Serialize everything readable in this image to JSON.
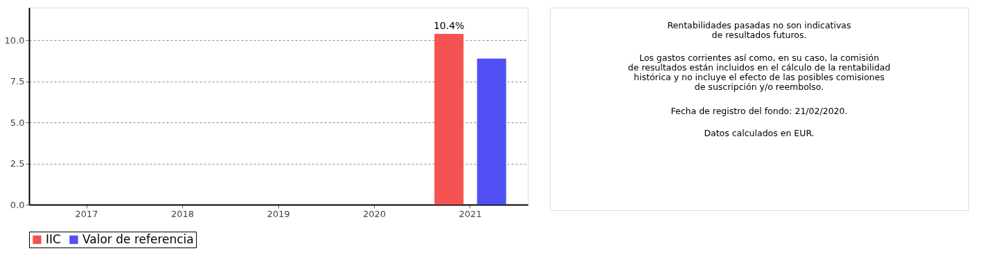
{
  "chart_data": [
    {
      "type": "bar",
      "categories": [
        "2017",
        "2018",
        "2019",
        "2020",
        "2021"
      ],
      "series": [
        {
          "name": "IIC",
          "color": "#f55252",
          "values": [
            null,
            null,
            null,
            null,
            10.4
          ],
          "value_labels": [
            null,
            null,
            null,
            null,
            "10.4%"
          ]
        },
        {
          "name": "Valor de referencia",
          "color": "#5050f5",
          "values": [
            null,
            null,
            null,
            null,
            8.9
          ]
        }
      ],
      "ylim": [
        0,
        12
      ],
      "yticks": [
        {
          "value": 0,
          "label": "0.0"
        },
        {
          "value": 2.5,
          "label": "2.5"
        },
        {
          "value": 5,
          "label": "5.0"
        },
        {
          "value": 7.5,
          "label": "7.5"
        },
        {
          "value": 10,
          "label": "10.0"
        }
      ],
      "grid": "y",
      "legend": "bottom"
    },
    {
      "type": "other",
      "annotations": [
        "Rentabilidades pasadas no son indicativas\nde resultados futuros.",
        "Los gastos corrientes así como, en su caso, la comisión\nde resultados están incluidos en el cálculo de la rentabilidad\nhistórica y no incluye el efecto de las posibles comisiones\nde suscripción y/o reembolso.",
        "Fecha de registro del fondo: 21/02/2020.",
        "Datos calculados en EUR."
      ]
    }
  ]
}
